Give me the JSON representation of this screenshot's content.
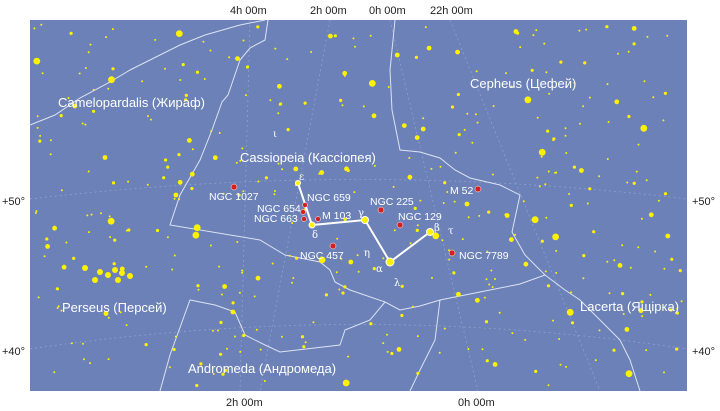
{
  "map": {
    "background": "#6B81B8",
    "boundary_color": "#DCE3F2",
    "grid_color": "#8FA0CC",
    "star_color": "#FFF200",
    "dso_color": "#D42020",
    "asterism_color": "#FFFFFF"
  },
  "ra_top": [
    "4h 00m",
    "2h 00m",
    "0h 00m",
    "22h 00m"
  ],
  "ra_bottom": [
    "2h 00m",
    "0h 00m"
  ],
  "dec_left": [
    "+50°",
    "+40°"
  ],
  "dec_right": [
    "+50°",
    "+40°"
  ],
  "constellations": [
    {
      "name": "Camelopardalis (Жираф)"
    },
    {
      "name": "Cepheus (Цефей)"
    },
    {
      "name": "Cassiopeia (Кассіопея)"
    },
    {
      "name": "Perseus (Персей)"
    },
    {
      "name": "Lacerta (Ящірка)"
    },
    {
      "name": "Andromeda (Андромеда)"
    }
  ],
  "objects": [
    {
      "label": "NGC 1027"
    },
    {
      "label": "NGC 659"
    },
    {
      "label": "NGC 654"
    },
    {
      "label": "NGC 663"
    },
    {
      "label": "M 103"
    },
    {
      "label": "NGC 225"
    },
    {
      "label": "NGC 129"
    },
    {
      "label": "M 52"
    },
    {
      "label": "NGC 457"
    },
    {
      "label": "NGC 7789"
    }
  ],
  "greek": [
    "ε",
    "δ",
    "γ",
    "η",
    "α",
    "β",
    "λ",
    "τ",
    "ι"
  ]
}
